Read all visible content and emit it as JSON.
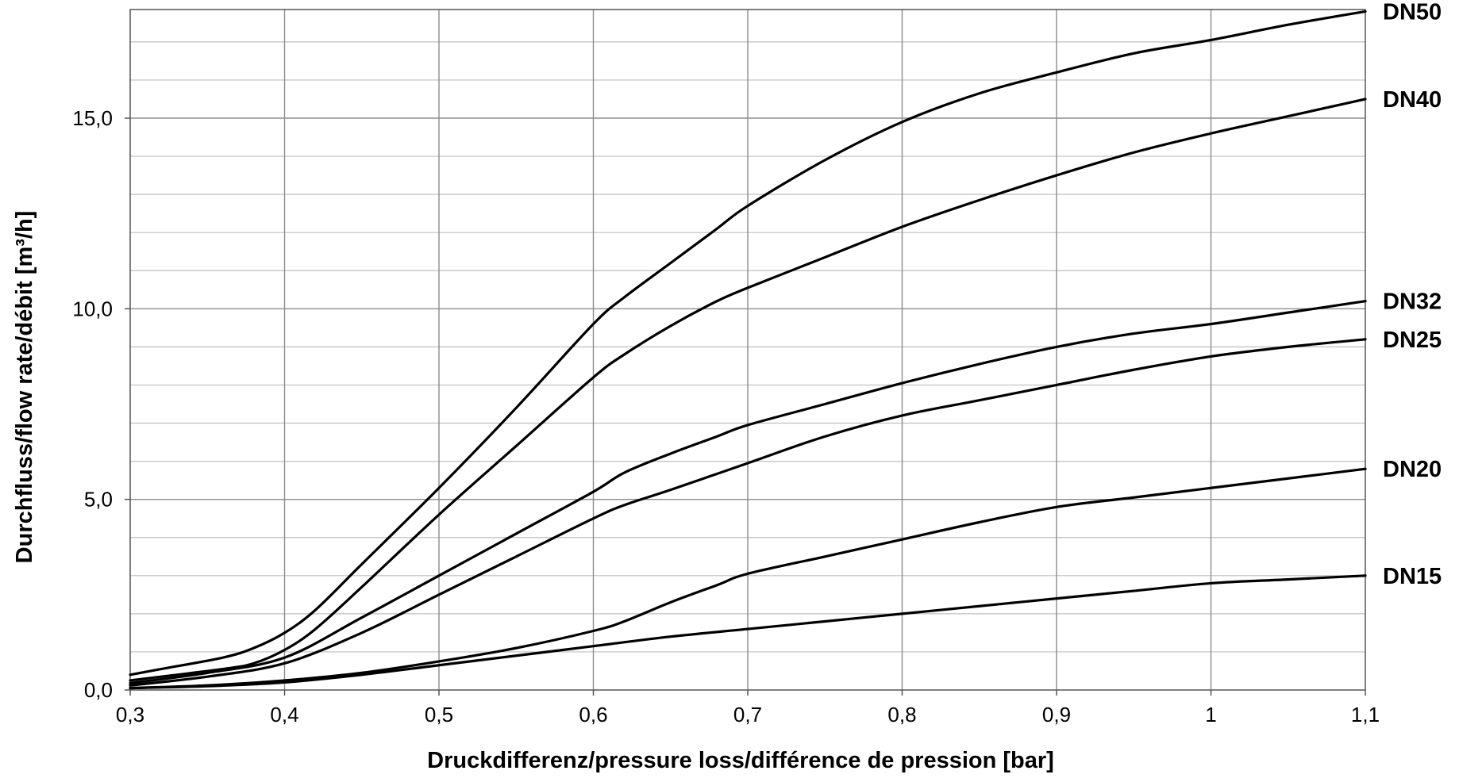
{
  "chart_data": {
    "type": "line",
    "title": "",
    "xlabel": "Druckdifferenz/pressure loss/différence de pression [bar]",
    "ylabel": "Durchfluss/flow rate/débit [m³/h]",
    "xlim": [
      0.3,
      1.1
    ],
    "ylim": [
      0,
      17.85
    ],
    "x_ticks": [
      0.3,
      0.4,
      0.5,
      0.6,
      0.7,
      0.8,
      0.9,
      1.0,
      1.1
    ],
    "x_tick_labels": [
      "0,3",
      "0,4",
      "0,5",
      "0,6",
      "0,7",
      "0,8",
      "0,9",
      "1",
      "1,1"
    ],
    "y_ticks": [
      0,
      5,
      10,
      15
    ],
    "y_tick_labels": [
      "0,0",
      "5,0",
      "10,0",
      "15,0"
    ],
    "grid": true,
    "legend": "series labels at right end of lines",
    "colors": {
      "line": "#000000",
      "grid_minor": "#bfbfbf",
      "grid_major": "#8c8c8c",
      "background": "#ffffff"
    },
    "series": [
      {
        "name": "DN50",
        "x": [
          0.3,
          0.32,
          0.36,
          0.38,
          0.4,
          0.42,
          0.45,
          0.5,
          0.55,
          0.6,
          0.62,
          0.65,
          0.68,
          0.7,
          0.75,
          0.8,
          0.85,
          0.9,
          0.95,
          1.0,
          1.05,
          1.1
        ],
        "y": [
          0.4,
          0.55,
          0.85,
          1.1,
          1.5,
          2.1,
          3.3,
          5.3,
          7.4,
          9.6,
          10.3,
          11.2,
          12.1,
          12.7,
          13.9,
          14.9,
          15.65,
          16.2,
          16.7,
          17.05,
          17.45,
          17.8
        ]
      },
      {
        "name": "DN40",
        "x": [
          0.3,
          0.36,
          0.38,
          0.4,
          0.42,
          0.45,
          0.5,
          0.55,
          0.6,
          0.62,
          0.65,
          0.68,
          0.7,
          0.75,
          0.8,
          0.85,
          0.9,
          0.95,
          1.0,
          1.05,
          1.1
        ],
        "y": [
          0.25,
          0.55,
          0.7,
          1.05,
          1.6,
          2.7,
          4.6,
          6.4,
          8.2,
          8.8,
          9.55,
          10.2,
          10.55,
          11.35,
          12.15,
          12.85,
          13.5,
          14.1,
          14.6,
          15.05,
          15.5
        ]
      },
      {
        "name": "DN32",
        "x": [
          0.3,
          0.35,
          0.4,
          0.45,
          0.5,
          0.55,
          0.6,
          0.62,
          0.65,
          0.68,
          0.7,
          0.75,
          0.8,
          0.85,
          0.9,
          0.95,
          1.0,
          1.05,
          1.1
        ],
        "y": [
          0.18,
          0.45,
          0.85,
          1.9,
          3.0,
          4.1,
          5.2,
          5.7,
          6.2,
          6.65,
          6.95,
          7.5,
          8.05,
          8.55,
          9.0,
          9.35,
          9.6,
          9.9,
          10.2
        ]
      },
      {
        "name": "DN25",
        "x": [
          0.3,
          0.35,
          0.4,
          0.45,
          0.5,
          0.55,
          0.6,
          0.62,
          0.65,
          0.7,
          0.75,
          0.8,
          0.85,
          0.9,
          0.95,
          1.0,
          1.05,
          1.1
        ],
        "y": [
          0.12,
          0.35,
          0.7,
          1.5,
          2.5,
          3.5,
          4.5,
          4.85,
          5.25,
          5.95,
          6.65,
          7.2,
          7.6,
          8.0,
          8.4,
          8.75,
          9.0,
          9.2
        ]
      },
      {
        "name": "DN20",
        "x": [
          0.3,
          0.35,
          0.4,
          0.45,
          0.5,
          0.55,
          0.6,
          0.62,
          0.65,
          0.68,
          0.7,
          0.75,
          0.8,
          0.85,
          0.9,
          0.95,
          1.0,
          1.05,
          1.1
        ],
        "y": [
          0.05,
          0.12,
          0.25,
          0.45,
          0.75,
          1.1,
          1.55,
          1.8,
          2.3,
          2.75,
          3.05,
          3.5,
          3.95,
          4.4,
          4.8,
          5.05,
          5.3,
          5.55,
          5.8
        ]
      },
      {
        "name": "DN15",
        "x": [
          0.3,
          0.35,
          0.4,
          0.45,
          0.5,
          0.55,
          0.6,
          0.65,
          0.7,
          0.75,
          0.8,
          0.85,
          0.9,
          0.95,
          1.0,
          1.05,
          1.1
        ],
        "y": [
          0.05,
          0.1,
          0.2,
          0.4,
          0.65,
          0.9,
          1.15,
          1.4,
          1.6,
          1.8,
          2.0,
          2.2,
          2.4,
          2.6,
          2.8,
          2.9,
          3.0
        ]
      }
    ]
  }
}
